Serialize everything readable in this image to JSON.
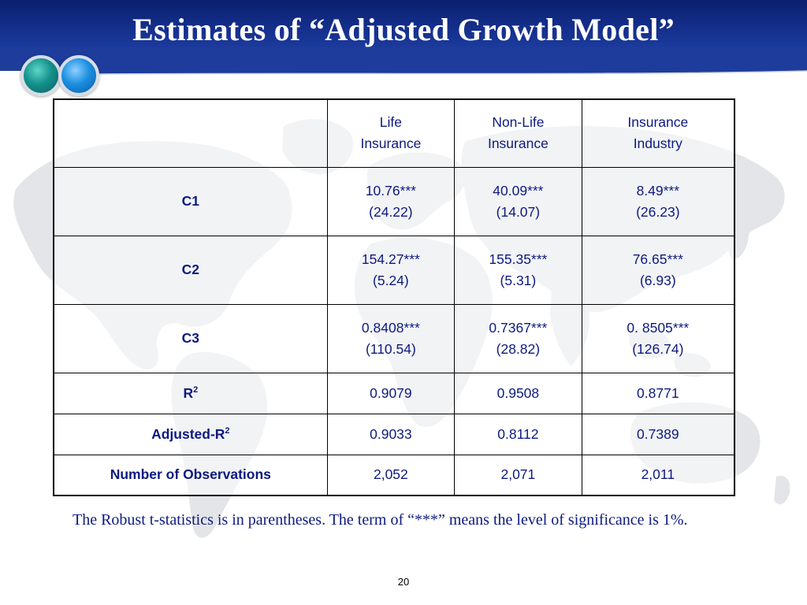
{
  "slide": {
    "title": "Estimates of “Adjusted Growth Model”",
    "page_number": "20",
    "note": "The Robust t-statistics is in parentheses. The term of “***” means the level of significance is 1%."
  },
  "table": {
    "columns": [
      {
        "line1": "Life",
        "line2": "Insurance"
      },
      {
        "line1": "Non-Life",
        "line2": "Insurance"
      },
      {
        "line1": "Insurance",
        "line2": "Industry"
      }
    ],
    "rows": [
      {
        "label": "C1",
        "cells": [
          {
            "est": "10.76***",
            "t": "(24.22)"
          },
          {
            "est": "40.09***",
            "t": "(14.07)"
          },
          {
            "est": "8.49***",
            "t": "(26.23)"
          }
        ]
      },
      {
        "label": "C2",
        "cells": [
          {
            "est": "154.27***",
            "t": "(5.24)"
          },
          {
            "est": "155.35***",
            "t": "(5.31)"
          },
          {
            "est": "76.65***",
            "t": "(6.93)"
          }
        ]
      },
      {
        "label": "C3",
        "cells": [
          {
            "est": "0.8408***",
            "t": "(110.54)"
          },
          {
            "est": "0.7367***",
            "t": "(28.82)"
          },
          {
            "est": "0. 8505***",
            "t": "(126.74)"
          }
        ]
      },
      {
        "label": "R",
        "label_sup": "2",
        "cells": [
          "0.9079",
          "0.9508",
          "0.8771"
        ]
      },
      {
        "label": "Adjusted-R",
        "label_sup": "2",
        "cells": [
          "0.9033",
          "0.8112",
          "0.7389"
        ]
      },
      {
        "label": "Number of Observations",
        "cells": [
          "2,052",
          "2,071",
          "2,011"
        ]
      }
    ]
  },
  "colors": {
    "header_blue": "#16318f",
    "text_navy": "#0d1a80",
    "orb_teal": "#14928c",
    "orb_blue": "#1c8fe0",
    "map_gray": "#e3e5e8"
  },
  "icons": {
    "decoration_left": "teal-orb-icon",
    "decoration_right": "blue-orb-icon",
    "background": "world-map-icon"
  }
}
